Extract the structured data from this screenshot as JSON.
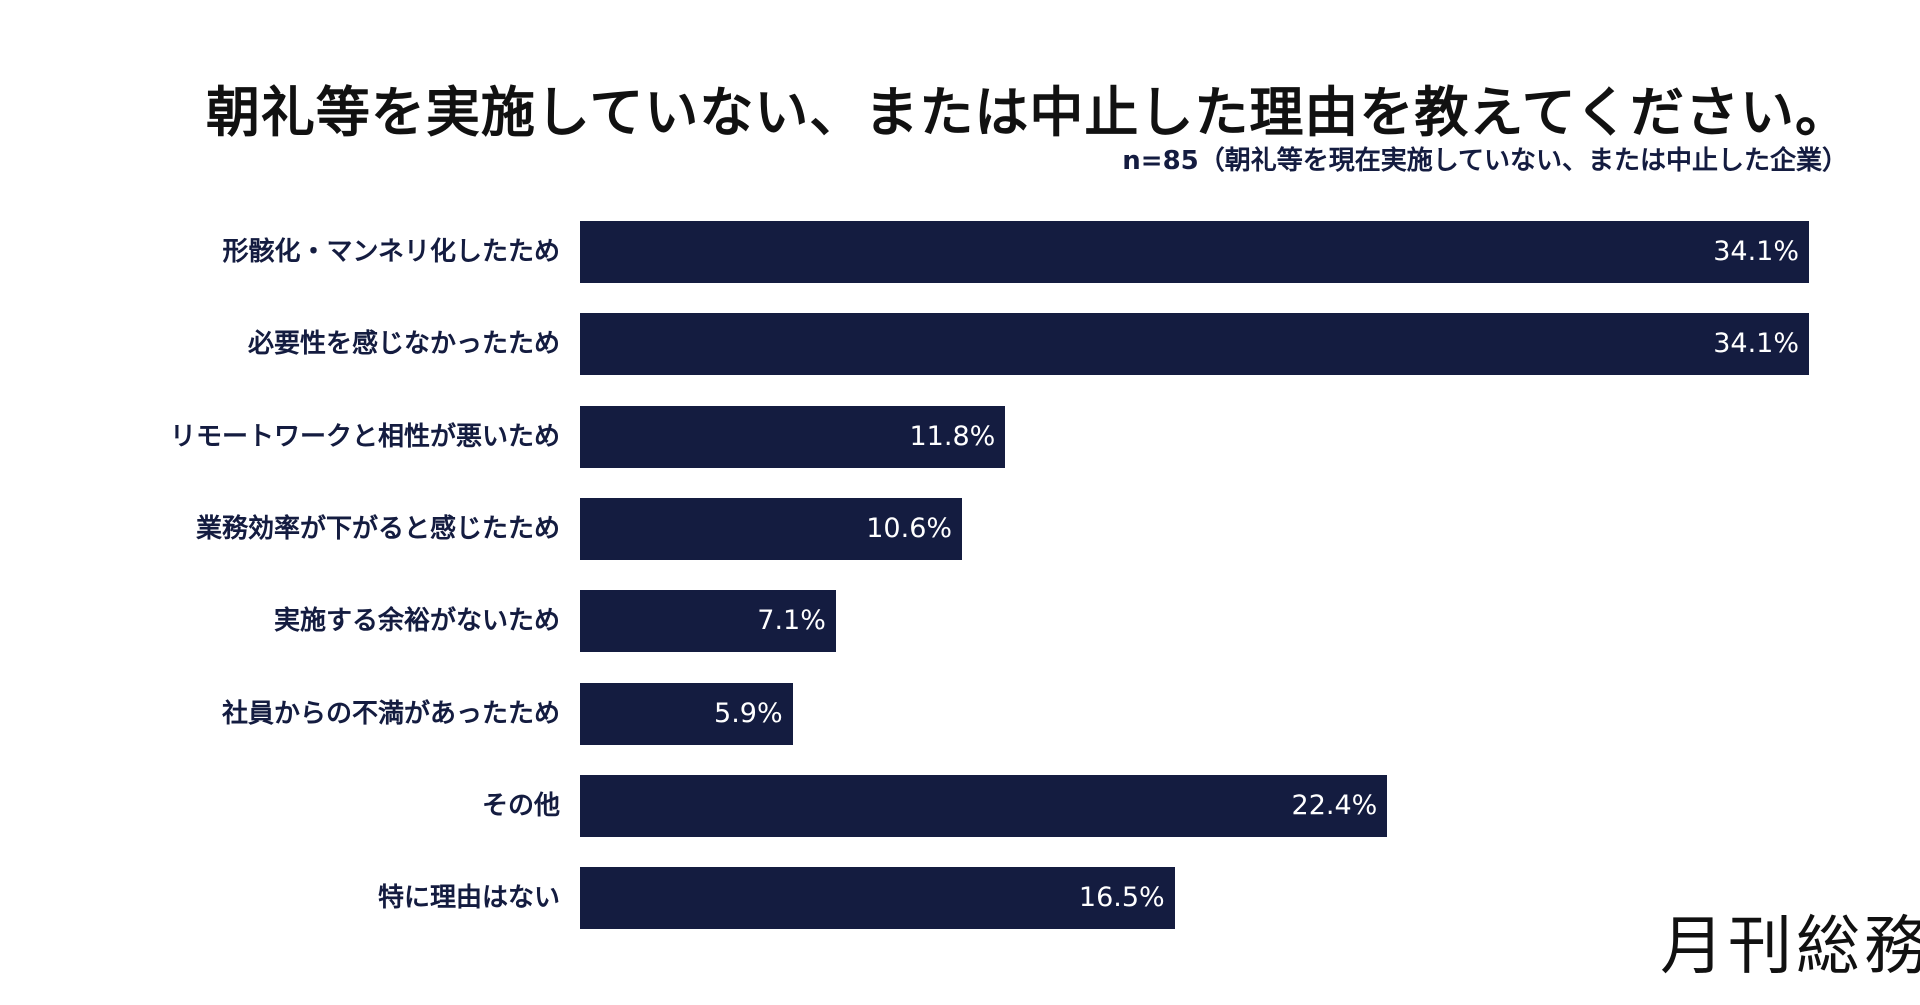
{
  "chart_data": {
    "type": "bar",
    "orientation": "horizontal",
    "title": "朝礼等を実施していない、または中止した理由を教えてください。",
    "subtitle": "n=85（朝礼等を現在実施していない、または中止した企業）",
    "categories": [
      "形骸化・マンネリ化したため",
      "必要性を感じなかったため",
      "リモートワークと相性が悪いため",
      "業務効率が下がると感じたため",
      "実施する余裕がないため",
      "社員からの不満があったため",
      "その他",
      "特に理由はない"
    ],
    "values": [
      34.1,
      34.1,
      11.8,
      10.6,
      7.1,
      5.9,
      22.4,
      16.5
    ],
    "value_labels": [
      "34.1%",
      "34.1%",
      "11.8%",
      "10.6%",
      "7.1%",
      "5.9%",
      "22.4%",
      "16.5%"
    ],
    "unit": "%",
    "bar_color": "#141c40",
    "grid": false
  },
  "logo": "月刊総務"
}
